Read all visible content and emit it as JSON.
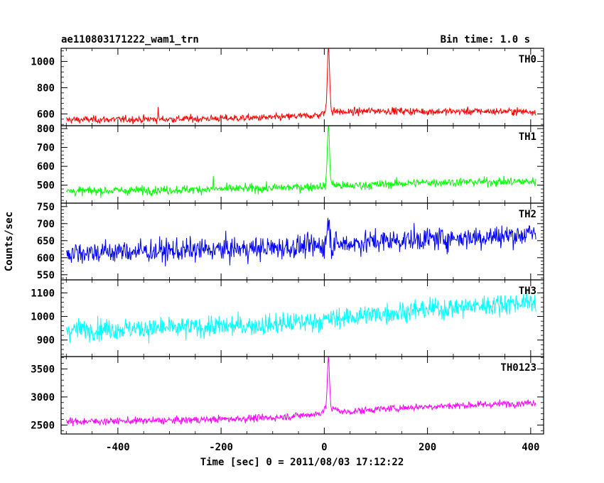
{
  "header": {
    "title": "ae110803171222_wam1_trn",
    "bin_time": "Bin time: 1.0 s"
  },
  "chart_data": {
    "type": "line",
    "xlabel": "Time [sec] 0 = 2011/08/03 17:12:22",
    "ylabel": "Counts/sec",
    "xlim": [
      -510,
      425
    ],
    "xticks": [
      -400,
      -200,
      0,
      200,
      400
    ],
    "x_range": [
      -500,
      410
    ],
    "grid": false,
    "panels": [
      {
        "name": "TH0",
        "color": "#ff0000",
        "ylim": [
          510,
          1100
        ],
        "yticks": [
          600,
          800,
          1000
        ],
        "baseline": [
          [
            -500,
            555
          ],
          [
            -300,
            560
          ],
          [
            -100,
            572
          ],
          [
            -10,
            590
          ],
          [
            0,
            610
          ],
          [
            12,
            625
          ],
          [
            40,
            612
          ],
          [
            100,
            625
          ],
          [
            200,
            618
          ],
          [
            300,
            620
          ],
          [
            410,
            618
          ]
        ],
        "noise": 26,
        "peak": {
          "t": 8,
          "height": 500,
          "width": 3
        },
        "spikes": [
          [
            -322,
            110
          ]
        ]
      },
      {
        "name": "TH1",
        "color": "#00ff00",
        "ylim": [
          405,
          815
        ],
        "yticks": [
          500,
          600,
          700,
          800
        ],
        "baseline": [
          [
            -500,
            468
          ],
          [
            -300,
            475
          ],
          [
            -100,
            485
          ],
          [
            0,
            495
          ],
          [
            12,
            505
          ],
          [
            40,
            495
          ],
          [
            200,
            515
          ],
          [
            410,
            520
          ]
        ],
        "noise": 22,
        "peak": {
          "t": 8,
          "height": 320,
          "width": 3
        },
        "spikes": [
          [
            -215,
            75
          ]
        ]
      },
      {
        "name": "TH2",
        "color": "#0000ff",
        "ylim": [
          535,
          760
        ],
        "yticks": [
          550,
          600,
          650,
          700,
          750
        ],
        "baseline": [
          [
            -500,
            615
          ],
          [
            -300,
            620
          ],
          [
            -100,
            628
          ],
          [
            0,
            635
          ],
          [
            100,
            648
          ],
          [
            200,
            655
          ],
          [
            300,
            660
          ],
          [
            410,
            670
          ]
        ],
        "noise": 32,
        "peak": {
          "t": 8,
          "height": 75,
          "width": 4
        },
        "spikes": []
      },
      {
        "name": "TH3",
        "color": "#00ffff",
        "ylim": [
          830,
          1155
        ],
        "yticks": [
          900,
          1000,
          1100
        ],
        "baseline": [
          [
            -500,
            945
          ],
          [
            -300,
            950
          ],
          [
            -100,
            965
          ],
          [
            0,
            985
          ],
          [
            100,
            1010
          ],
          [
            200,
            1030
          ],
          [
            300,
            1045
          ],
          [
            410,
            1065
          ]
        ],
        "noise": 42,
        "peak": {
          "t": 8,
          "height": 0,
          "width": 3
        },
        "spikes": []
      },
      {
        "name": "TH0123",
        "color": "#ff00ff",
        "ylim": [
          2340,
          3720
        ],
        "yticks": [
          2500,
          3000,
          3500
        ],
        "baseline": [
          [
            -500,
            2560
          ],
          [
            -300,
            2580
          ],
          [
            -100,
            2630
          ],
          [
            -10,
            2700
          ],
          [
            0,
            2780
          ],
          [
            12,
            2800
          ],
          [
            40,
            2730
          ],
          [
            100,
            2780
          ],
          [
            200,
            2830
          ],
          [
            300,
            2860
          ],
          [
            410,
            2900
          ]
        ],
        "noise": 60,
        "peak": {
          "t": 8,
          "height": 880,
          "width": 3
        },
        "spikes": []
      }
    ]
  }
}
